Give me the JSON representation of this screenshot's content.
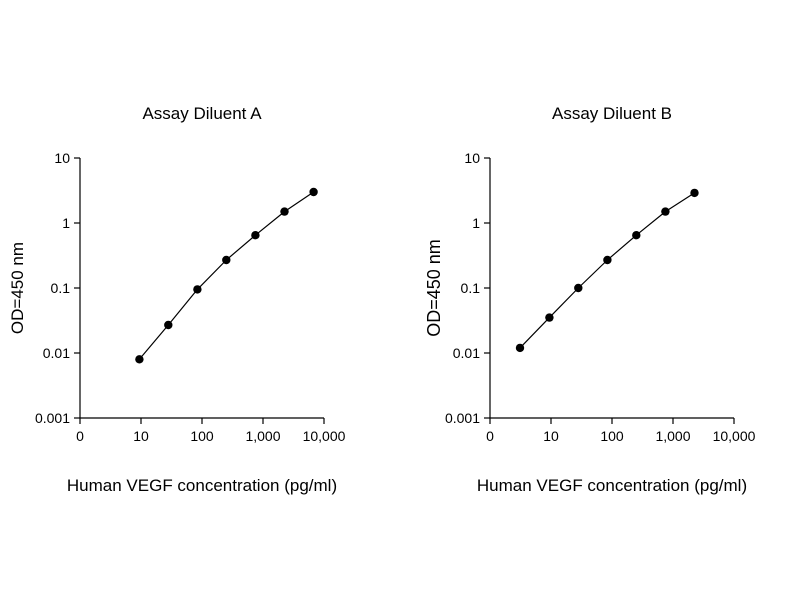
{
  "page": {
    "background": "#ffffff",
    "text_color": "#000000"
  },
  "chart_data": [
    {
      "type": "line",
      "title": "Assay Diluent A",
      "xlabel": "Human VEGF concentration (pg/ml)",
      "ylabel": "OD=450 nm",
      "x_scale": "log",
      "y_scale": "log",
      "xlim": [
        1,
        10000
      ],
      "ylim": [
        0.001,
        10
      ],
      "x_tick_labels": [
        "0",
        "10",
        "100",
        "1,000",
        "10,000"
      ],
      "y_tick_labels": [
        "0.001",
        "0.01",
        "0.1",
        "1",
        "10"
      ],
      "grid": false,
      "legend": null,
      "line_color": "#000000",
      "marker_color": "#000000",
      "points": [
        {
          "x": 9.4,
          "y": 0.008
        },
        {
          "x": 28,
          "y": 0.027
        },
        {
          "x": 84,
          "y": 0.095
        },
        {
          "x": 250,
          "y": 0.27
        },
        {
          "x": 750,
          "y": 0.65
        },
        {
          "x": 2250,
          "y": 1.5
        },
        {
          "x": 6750,
          "y": 3.0
        }
      ]
    },
    {
      "type": "line",
      "title": "Assay Diluent B",
      "xlabel": "Human VEGF concentration (pg/ml)",
      "ylabel": "OD=450 nm",
      "x_scale": "log",
      "y_scale": "log",
      "xlim": [
        1,
        10000
      ],
      "ylim": [
        0.001,
        10
      ],
      "x_tick_labels": [
        "0",
        "10",
        "100",
        "1,000",
        "10,000"
      ],
      "y_tick_labels": [
        "0.001",
        "0.01",
        "0.1",
        "1",
        "10"
      ],
      "grid": false,
      "legend": null,
      "line_color": "#000000",
      "marker_color": "#000000",
      "points": [
        {
          "x": 3.1,
          "y": 0.012
        },
        {
          "x": 9.4,
          "y": 0.035
        },
        {
          "x": 28,
          "y": 0.1
        },
        {
          "x": 84,
          "y": 0.27
        },
        {
          "x": 250,
          "y": 0.65
        },
        {
          "x": 750,
          "y": 1.5
        },
        {
          "x": 2250,
          "y": 2.9
        }
      ]
    }
  ]
}
